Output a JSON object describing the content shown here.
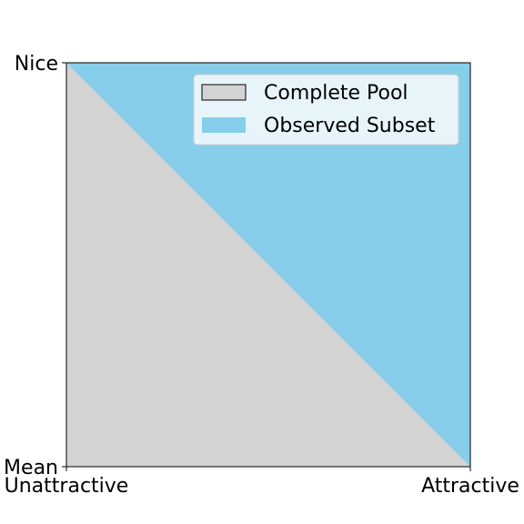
{
  "chart_data": {
    "type": "area",
    "title": "",
    "xlabel": "",
    "ylabel": "",
    "xlim": [
      0,
      1
    ],
    "ylim": [
      0,
      1
    ],
    "grid": false,
    "x_ticks": [
      {
        "value": 0,
        "label": "Unattractive"
      },
      {
        "value": 1,
        "label": "Attractive"
      }
    ],
    "y_ticks": [
      {
        "value": 0,
        "label": "Mean"
      },
      {
        "value": 1,
        "label": "Nice"
      }
    ],
    "legend_position": "top-right",
    "series": [
      {
        "name": "Complete Pool",
        "color": "#d3d3d3",
        "edge_color": "#000000",
        "polygon": [
          [
            0,
            0
          ],
          [
            1,
            0
          ],
          [
            1,
            1
          ],
          [
            0,
            1
          ]
        ]
      },
      {
        "name": "Observed Subset",
        "color": "#87ceeb",
        "polygon": [
          [
            0,
            1
          ],
          [
            1,
            1
          ],
          [
            1,
            0
          ]
        ]
      }
    ]
  }
}
